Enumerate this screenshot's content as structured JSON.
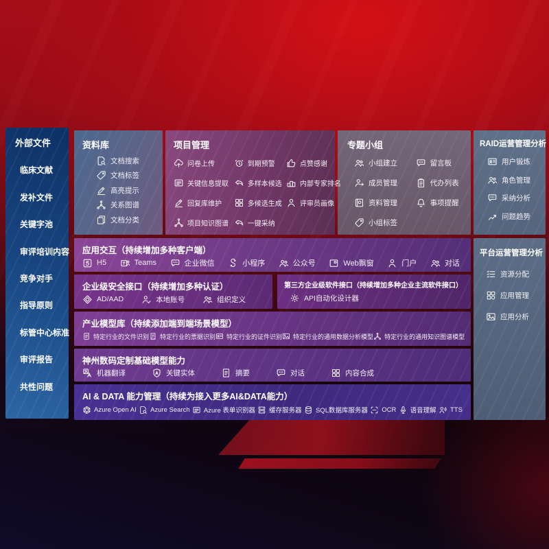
{
  "colors": {
    "background_red": "#b00d17",
    "sidebar_blue": "#17447f",
    "panel_purple": "#6e3a86",
    "panel_slate": "#5c6d86",
    "panel_mauve": "#74396a",
    "text": "#ffffff"
  },
  "sidebar": {
    "title": "外部文件",
    "items": [
      "临床文献",
      "发补文件",
      "关键字池",
      "审评培训内容",
      "竞争对手",
      "指导原则",
      "标管中心标准",
      "审评报告",
      "共性问题"
    ]
  },
  "repo": {
    "title": "资料库",
    "items": [
      {
        "label": "文档搜索",
        "icon": "doc-search-icon"
      },
      {
        "label": "文档标签",
        "icon": "tag-icon"
      },
      {
        "label": "高亮提示",
        "icon": "highlighter-icon"
      },
      {
        "label": "关系图谱",
        "icon": "graph-icon"
      },
      {
        "label": "文档分类",
        "icon": "copy-icon"
      }
    ]
  },
  "project": {
    "title": "项目管理",
    "col1": [
      {
        "label": "问卷上传",
        "icon": "cloud-upload-icon"
      },
      {
        "label": "关键信息提取",
        "icon": "extract-icon"
      },
      {
        "label": "回复库维护",
        "icon": "pen-icon"
      },
      {
        "label": "项目知识图谱",
        "icon": "graph-icon"
      }
    ],
    "col2": [
      {
        "label": "到期预警",
        "icon": "alarm-icon"
      },
      {
        "label": "多样本候选",
        "icon": "reply-icon"
      },
      {
        "label": "多候选生成",
        "icon": "puzzle-icon"
      },
      {
        "label": "一键采纳",
        "icon": "adopt-arrow-icon"
      }
    ],
    "col3": [
      {
        "label": "点赞感谢",
        "icon": "thumbs-up-icon"
      },
      {
        "label": "内部专家排名",
        "icon": "ranking-icon"
      },
      {
        "label": "评审员画像",
        "icon": "person-icon"
      }
    ]
  },
  "groups": {
    "title": "专题小组",
    "col1": [
      {
        "label": "小组建立",
        "icon": "people-icon"
      },
      {
        "label": "成员管理",
        "icon": "person-plus-icon"
      },
      {
        "label": "资料管理",
        "icon": "album-icon"
      },
      {
        "label": "小组标签",
        "icon": "tag-icon"
      }
    ],
    "col2": [
      {
        "label": "留言板",
        "icon": "message-board-icon"
      },
      {
        "label": "代办列表",
        "icon": "clipboard-icon"
      },
      {
        "label": "事项提醒",
        "icon": "bell-icon"
      }
    ]
  },
  "raid": {
    "title": "RAID运营管理分析",
    "items": [
      {
        "label": "用户锻炼",
        "icon": "id-card-icon"
      },
      {
        "label": "角色管理",
        "icon": "people-icon"
      },
      {
        "label": "采纳分析",
        "icon": "chat-analysis-icon"
      },
      {
        "label": "问题趋势",
        "icon": "trend-icon"
      }
    ]
  },
  "platform": {
    "title": "平台运营管理分析",
    "items": [
      {
        "label": "资源分配",
        "icon": "list-icon"
      },
      {
        "label": "应用管理",
        "icon": "app-grid-icon"
      },
      {
        "label": "应用分析",
        "icon": "chart-image-icon"
      }
    ]
  },
  "interaction": {
    "title": "应用交互（持续增加多种客户端）",
    "items": [
      {
        "label": "H5",
        "icon": "h5-icon"
      },
      {
        "label": "Teams",
        "icon": "teams-icon"
      },
      {
        "label": "企业微信",
        "icon": "wechat-work-icon"
      },
      {
        "label": "小程序",
        "icon": "miniprogram-icon"
      },
      {
        "label": "公众号",
        "icon": "official-account-icon"
      },
      {
        "label": "Web飘窗",
        "icon": "web-window-icon"
      },
      {
        "label": "门户",
        "icon": "portal-icon"
      },
      {
        "label": "对话",
        "icon": "dialog-icon"
      }
    ]
  },
  "security": {
    "title": "企业级安全接口（持续增加多种认证）",
    "items": [
      {
        "label": "AD/AAD",
        "icon": "azure-ad-icon"
      },
      {
        "label": "本地账号",
        "icon": "local-account-icon"
      },
      {
        "label": "组织定义",
        "icon": "org-icon"
      }
    ]
  },
  "third": {
    "title": "第三方企业级软件接口（持续增加多种企业主流软件接口）",
    "items": [
      {
        "label": "API自动化设计器",
        "icon": "api-designer-icon"
      }
    ]
  },
  "industry": {
    "title": "产业模型库（持续添加端到端场景模型）",
    "items": [
      {
        "label": "特定行业的文件识别",
        "icon": "doc-icon"
      },
      {
        "label": "特定行业的票据识别",
        "icon": "receipt-icon"
      },
      {
        "label": "特定行业的证件识别",
        "icon": "id-card-icon"
      },
      {
        "label": "特定行业的通用数据分析模型",
        "icon": "image-model-icon"
      },
      {
        "label": "特定行业的通用知识图谱模型",
        "icon": "graph-icon"
      }
    ]
  },
  "custom": {
    "title": "神州数码定制基础模型能力",
    "items": [
      {
        "label": "机器翻译",
        "icon": "translate-icon"
      },
      {
        "label": "关键实体",
        "icon": "entity-shield-icon"
      },
      {
        "label": "摘要",
        "icon": "summary-doc-icon"
      },
      {
        "label": "对话",
        "icon": "dialog-icon"
      },
      {
        "label": "内容合成",
        "icon": "compose-puzzle-icon"
      }
    ]
  },
  "aidata": {
    "title": "AI & DATA 能力管理（持续为接入更多AI&DATA能力）",
    "items": [
      {
        "label": "Azure Open AI",
        "icon": "openai-icon"
      },
      {
        "label": "Azure Search",
        "icon": "azure-search-icon"
      },
      {
        "label": "Azure 表单识别器",
        "icon": "form-recognizer-icon"
      },
      {
        "label": "缓存服务器",
        "icon": "cache-server-icon"
      },
      {
        "label": "SQL数据库服务器",
        "icon": "sql-db-icon"
      },
      {
        "label": "OCR",
        "icon": "ocr-icon"
      },
      {
        "label": "语音理解",
        "icon": "speech-icon"
      },
      {
        "label": "TTS",
        "icon": "tts-icon"
      }
    ]
  }
}
